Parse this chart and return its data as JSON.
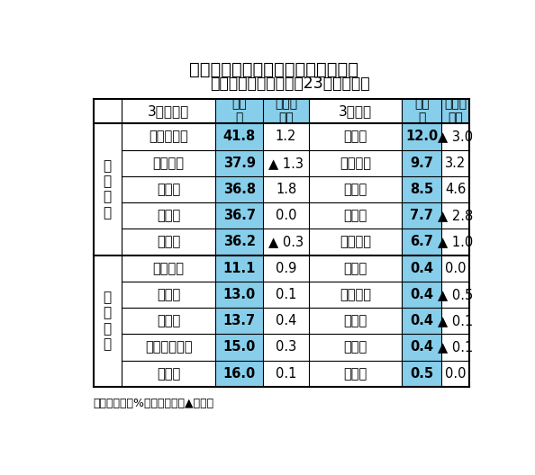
{
  "title_line1": "地域銀の定期預金残存期間別構成比",
  "title_line2": "高い５行と低い５行（23年３月末）",
  "footnote": "（注）単位：%、ポイント、▲は低下",
  "high_rows": [
    [
      "東京スター",
      "41.8",
      "1.2",
      "長　崎",
      "12.0",
      "▲ 3.0"
    ],
    [
      "千葉興業",
      "37.9",
      "▲ 1.3",
      "佐賀共栄",
      "9.7",
      "3.2"
    ],
    [
      "琉　球",
      "36.8",
      "1.8",
      "島　根",
      "8.5",
      "4.6"
    ],
    [
      "横　浜",
      "36.7",
      "0.0",
      "豊　和",
      "7.7",
      "▲ 2.8"
    ],
    [
      "鹿児島",
      "36.2",
      "▲ 0.3",
      "山梨中央",
      "6.7",
      "▲ 1.0"
    ]
  ],
  "low_rows": [
    [
      "佐賀共栄",
      "11.1",
      "0.9",
      "東　北",
      "0.4",
      "0.0"
    ],
    [
      "スルガ",
      "13.0",
      "0.1",
      "きらぼし",
      "0.4",
      "▲ 0.5"
    ],
    [
      "筑　邦",
      "13.7",
      "0.4",
      "愛　知",
      "0.4",
      "▲ 0.1"
    ],
    [
      "西日本シティ",
      "15.0",
      "0.3",
      "もみじ",
      "0.4",
      "▲ 0.1"
    ],
    [
      "但　馬",
      "16.0",
      "0.1",
      "荘　内",
      "0.5",
      "0.0"
    ]
  ],
  "light_blue": "#87CEEB",
  "white": "#FFFFFF",
  "border": "#000000"
}
